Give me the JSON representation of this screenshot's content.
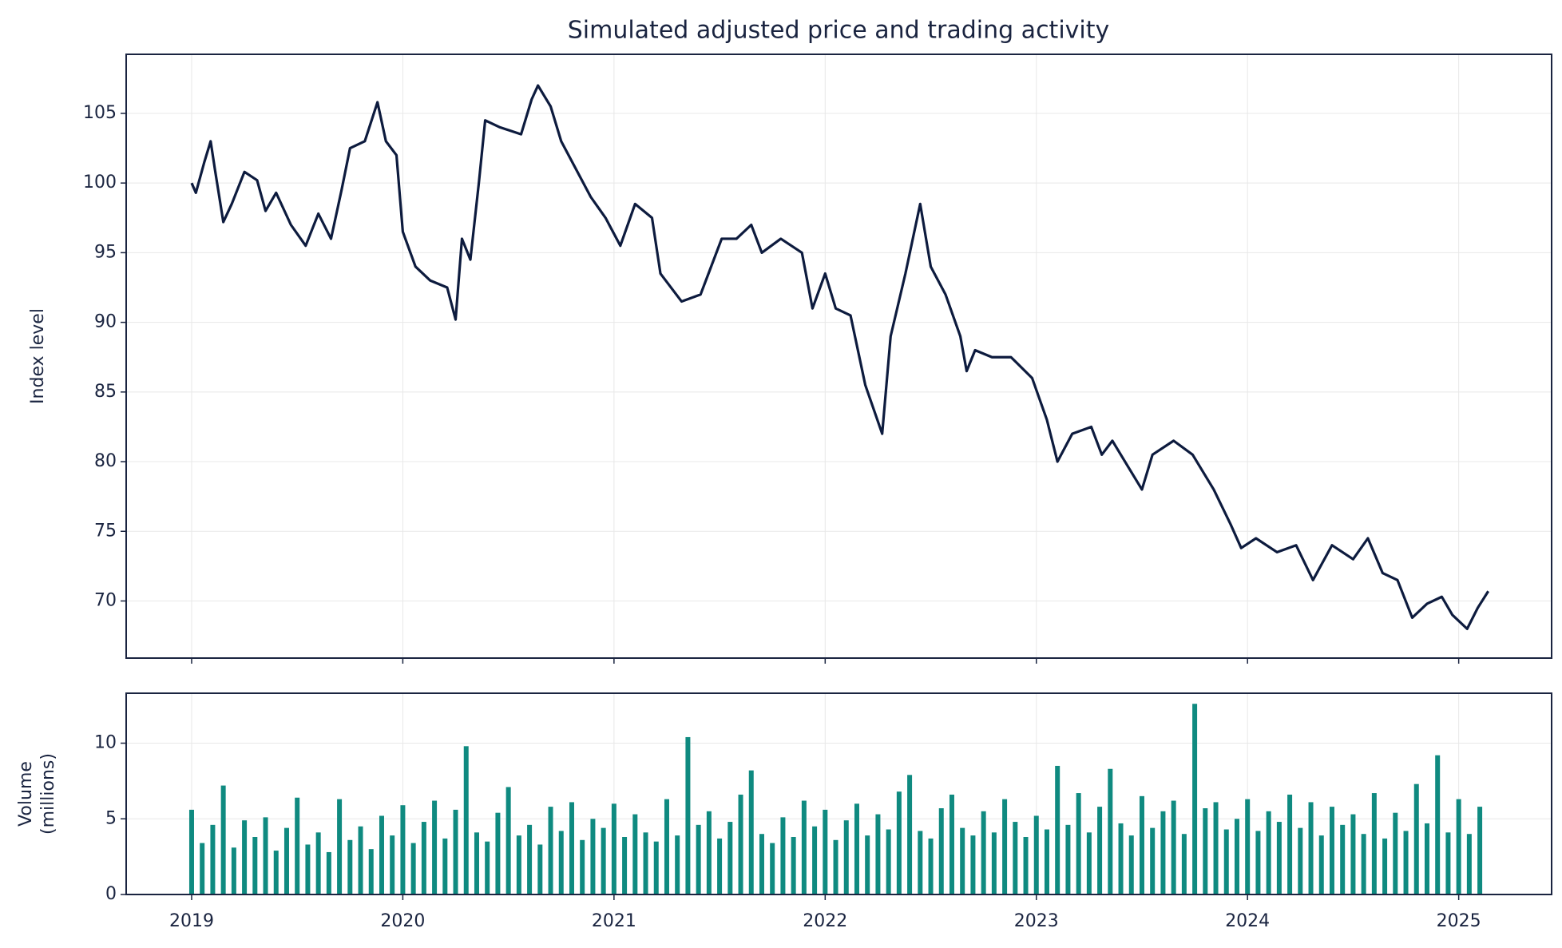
{
  "chart_data": [
    {
      "type": "line",
      "title": "Simulated adjusted price and trading activity",
      "ylabel": "Index level",
      "color": "#0d1b3e",
      "grid": true,
      "x": [
        2019.0,
        2019.02,
        2019.06,
        2019.09,
        2019.11,
        2019.15,
        2019.19,
        2019.25,
        2019.31,
        2019.35,
        2019.4,
        2019.47,
        2019.54,
        2019.6,
        2019.66,
        2019.71,
        2019.75,
        2019.82,
        2019.88,
        2019.92,
        2019.97,
        2020.0,
        2020.06,
        2020.13,
        2020.21,
        2020.25,
        2020.28,
        2020.32,
        2020.36,
        2020.39,
        2020.46,
        2020.56,
        2020.61,
        2020.64,
        2020.7,
        2020.75,
        2020.82,
        2020.89,
        2020.96,
        2021.03,
        2021.1,
        2021.18,
        2021.22,
        2021.32,
        2021.41,
        2021.51,
        2021.58,
        2021.65,
        2021.7,
        2021.79,
        2021.89,
        2021.94,
        2022.0,
        2022.05,
        2022.12,
        2022.19,
        2022.27,
        2022.31,
        2022.38,
        2022.45,
        2022.5,
        2022.57,
        2022.64,
        2022.67,
        2022.71,
        2022.79,
        2022.88,
        2022.98,
        2023.05,
        2023.1,
        2023.17,
        2023.26,
        2023.31,
        2023.36,
        2023.44,
        2023.5,
        2023.55,
        2023.65,
        2023.74,
        2023.84,
        2023.92,
        2023.97,
        2024.04,
        2024.14,
        2024.23,
        2024.31,
        2024.4,
        2024.5,
        2024.57,
        2024.64,
        2024.71,
        2024.78,
        2024.85,
        2024.92,
        2024.97,
        2025.04,
        2025.09,
        2025.14
      ],
      "values": [
        100,
        99.3,
        101.5,
        103,
        101,
        97.2,
        98.5,
        100.8,
        100.2,
        98,
        99.3,
        97,
        95.5,
        97.8,
        96,
        99.5,
        102.5,
        103,
        105.8,
        103,
        102,
        96.5,
        94,
        93,
        92.5,
        90.2,
        96,
        94.5,
        100,
        104.5,
        104,
        103.5,
        106,
        107,
        105.5,
        103,
        101,
        99,
        97.5,
        95.5,
        98.5,
        97.5,
        93.5,
        91.5,
        92,
        96,
        96,
        97,
        95,
        96,
        95,
        91,
        93.5,
        91,
        90.5,
        85.5,
        82,
        89,
        93.5,
        98.5,
        94,
        92,
        89,
        86.5,
        88,
        87.5,
        87.5,
        86,
        83,
        80,
        82,
        82.5,
        80.5,
        81.5,
        79.5,
        78,
        80.5,
        81.5,
        80.5,
        78,
        75.5,
        73.8,
        74.5,
        73.5,
        74,
        71.5,
        74,
        73,
        74.5,
        72,
        71.5,
        68.8,
        69.8,
        70.3,
        69,
        68,
        69.5,
        70.7
      ],
      "xlim": [
        2018.69,
        2025.44
      ],
      "xticks": [
        2019,
        2020,
        2021,
        2022,
        2023,
        2024,
        2025
      ],
      "ylim": [
        65.9,
        109.24
      ],
      "yticks": [
        70,
        75,
        80,
        85,
        90,
        95,
        100,
        105
      ]
    },
    {
      "type": "bar",
      "ylabel": [
        "Volume",
        "(millions)"
      ],
      "color": "#0f8a80",
      "grid": true,
      "x": [
        2019.0,
        2019.05,
        2019.1,
        2019.15,
        2019.2,
        2019.25,
        2019.3,
        2019.35,
        2019.4,
        2019.45,
        2019.5,
        2019.55,
        2019.6,
        2019.65,
        2019.7,
        2019.75,
        2019.8,
        2019.85,
        2019.9,
        2019.95,
        2020.0,
        2020.05,
        2020.1,
        2020.15,
        2020.2,
        2020.25,
        2020.3,
        2020.35,
        2020.4,
        2020.45,
        2020.5,
        2020.55,
        2020.6,
        2020.65,
        2020.7,
        2020.75,
        2020.8,
        2020.85,
        2020.9,
        2020.95,
        2021.0,
        2021.05,
        2021.1,
        2021.15,
        2021.2,
        2021.25,
        2021.3,
        2021.35,
        2021.4,
        2021.45,
        2021.5,
        2021.55,
        2021.6,
        2021.65,
        2021.7,
        2021.75,
        2021.8,
        2021.85,
        2021.9,
        2021.95,
        2022.0,
        2022.05,
        2022.1,
        2022.15,
        2022.2,
        2022.25,
        2022.3,
        2022.35,
        2022.4,
        2022.45,
        2022.5,
        2022.55,
        2022.6,
        2022.65,
        2022.7,
        2022.75,
        2022.8,
        2022.85,
        2022.9,
        2022.95,
        2023.0,
        2023.05,
        2023.1,
        2023.15,
        2023.2,
        2023.25,
        2023.3,
        2023.35,
        2023.4,
        2023.45,
        2023.5,
        2023.55,
        2023.6,
        2023.65,
        2023.7,
        2023.75,
        2023.8,
        2023.85,
        2023.9,
        2023.95,
        2024.0,
        2024.05,
        2024.1,
        2024.15,
        2024.2,
        2024.25,
        2024.3,
        2024.35,
        2024.4,
        2024.45,
        2024.5,
        2024.55,
        2024.6,
        2024.65,
        2024.7,
        2024.75,
        2024.8,
        2024.85,
        2024.9,
        2024.95,
        2025.0,
        2025.05,
        2025.1
      ],
      "values": [
        5.6,
        3.4,
        4.6,
        7.2,
        3.1,
        4.9,
        3.8,
        5.1,
        2.9,
        4.4,
        6.4,
        3.3,
        4.1,
        2.8,
        6.3,
        3.6,
        4.5,
        3.0,
        5.2,
        3.9,
        5.9,
        3.4,
        4.8,
        6.2,
        3.7,
        5.6,
        9.8,
        4.1,
        3.5,
        5.4,
        7.1,
        3.9,
        4.6,
        3.3,
        5.8,
        4.2,
        6.1,
        3.6,
        5.0,
        4.4,
        6.0,
        3.8,
        5.3,
        4.1,
        3.5,
        6.3,
        3.9,
        10.4,
        4.6,
        5.5,
        3.7,
        4.8,
        6.6,
        8.2,
        4.0,
        3.4,
        5.1,
        3.8,
        6.2,
        4.5,
        5.6,
        3.6,
        4.9,
        6.0,
        3.9,
        5.3,
        4.3,
        6.8,
        7.9,
        4.2,
        3.7,
        5.7,
        6.6,
        4.4,
        3.9,
        5.5,
        4.1,
        6.3,
        4.8,
        3.8,
        5.2,
        4.3,
        8.5,
        4.6,
        6.7,
        4.1,
        5.8,
        8.3,
        4.7,
        3.9,
        6.5,
        4.4,
        5.5,
        6.2,
        4.0,
        12.6,
        5.7,
        6.1,
        4.3,
        5.0,
        6.3,
        4.2,
        5.5,
        4.8,
        6.6,
        4.4,
        6.1,
        3.9,
        5.8,
        4.6,
        5.3,
        4.0,
        6.7,
        3.7,
        5.4,
        4.2,
        7.3,
        4.7,
        9.2,
        4.1,
        6.3,
        4.0,
        5.8
      ],
      "xlim": [
        2018.69,
        2025.44
      ],
      "xticks": [
        2019,
        2020,
        2021,
        2022,
        2023,
        2024,
        2025
      ],
      "ylim": [
        0,
        13.3
      ],
      "yticks": [
        0,
        5,
        10
      ]
    }
  ]
}
